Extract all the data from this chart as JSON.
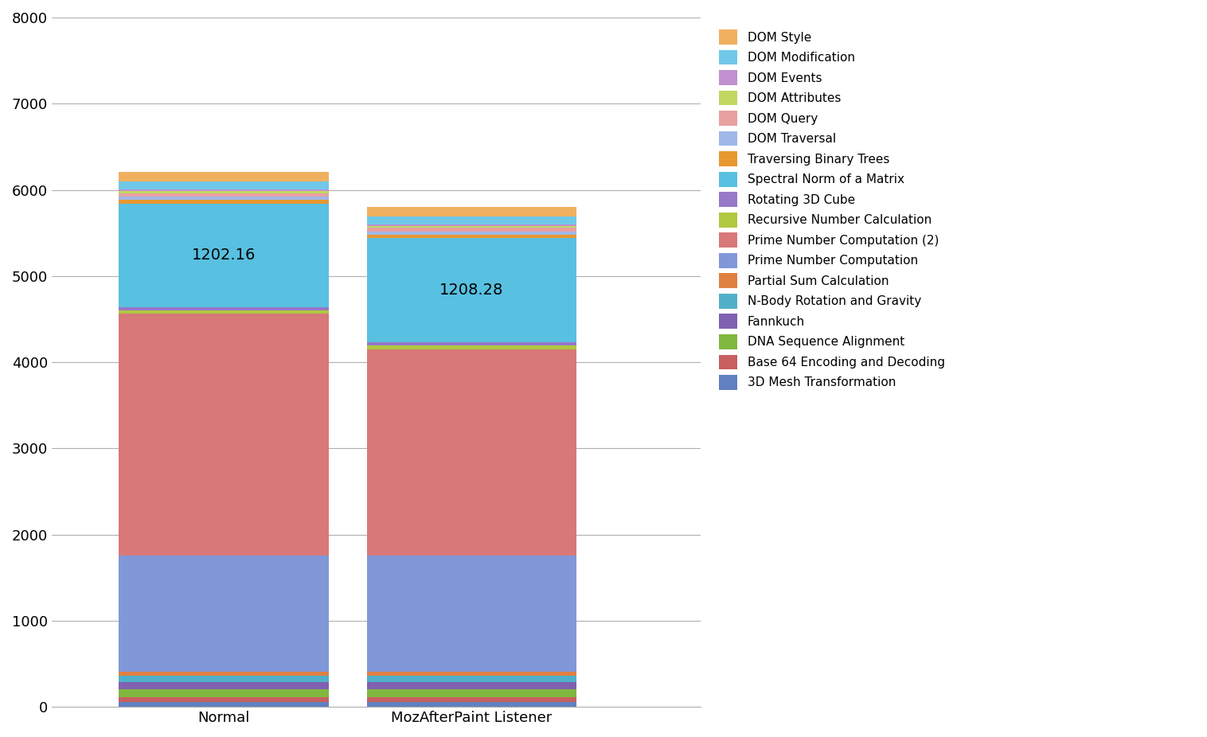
{
  "categories": [
    "Normal",
    "MozAfterPaint Listener"
  ],
  "series": [
    {
      "label": "3D Mesh Transformation",
      "color": "#6080c0",
      "values": [
        60,
        60
      ]
    },
    {
      "label": "Base 64 Encoding and Decoding",
      "color": "#c86060",
      "values": [
        55,
        55
      ]
    },
    {
      "label": "DNA Sequence Alignment",
      "color": "#80b840",
      "values": [
        90,
        90
      ]
    },
    {
      "label": "Fannkuch",
      "color": "#8060b0",
      "values": [
        80,
        80
      ]
    },
    {
      "label": "N-Body Rotation and Gravity",
      "color": "#50b0c8",
      "values": [
        80,
        80
      ]
    },
    {
      "label": "Partial Sum Calculation",
      "color": "#e08040",
      "values": [
        45,
        45
      ]
    },
    {
      "label": "Prime Number Computation",
      "color": "#8098d8",
      "values": [
        1350,
        1350
      ]
    },
    {
      "label": "Prime Number Computation (2)",
      "color": "#d87878",
      "values": [
        2800,
        2390
      ]
    },
    {
      "label": "Recursive Number Calculation",
      "color": "#b0c840",
      "values": [
        40,
        40
      ]
    },
    {
      "label": "Rotating 3D Cube",
      "color": "#9878c8",
      "values": [
        40,
        40
      ]
    },
    {
      "label": "Spectral Norm of a Matrix",
      "color": "#58c0e0",
      "values": [
        1202.16,
        1208.28
      ]
    },
    {
      "label": "Traversing Binary Trees",
      "color": "#e89830",
      "values": [
        40,
        40
      ]
    },
    {
      "label": "DOM Traversal",
      "color": "#a0b8e8",
      "values": [
        40,
        40
      ]
    },
    {
      "label": "DOM Query",
      "color": "#e8a0a0",
      "values": [
        40,
        40
      ]
    },
    {
      "label": "DOM Attributes",
      "color": "#c0d860",
      "values": [
        25,
        25
      ]
    },
    {
      "label": "DOM Events",
      "color": "#c090d0",
      "values": [
        18,
        18
      ]
    },
    {
      "label": "DOM Modification",
      "color": "#70c8e8",
      "values": [
        90,
        90
      ]
    },
    {
      "label": "DOM Style",
      "color": "#f0b060",
      "values": [
        110,
        110
      ]
    }
  ],
  "bar_labels": [
    {
      "bar": 0,
      "label": "1202.16",
      "series_index": 10
    },
    {
      "bar": 1,
      "label": "1208.28",
      "series_index": 10
    }
  ],
  "ylim": [
    0,
    8000
  ],
  "yticks": [
    0,
    1000,
    2000,
    3000,
    4000,
    5000,
    6000,
    7000,
    8000
  ],
  "grid_color": "#b0b0b0",
  "background_color": "#ffffff",
  "bar_width": 0.55,
  "x_positions": [
    0.35,
    1.0
  ],
  "xlim": [
    -0.1,
    1.6
  ],
  "legend_fontsize": 11,
  "tick_fontsize": 13,
  "label_fontsize": 14
}
